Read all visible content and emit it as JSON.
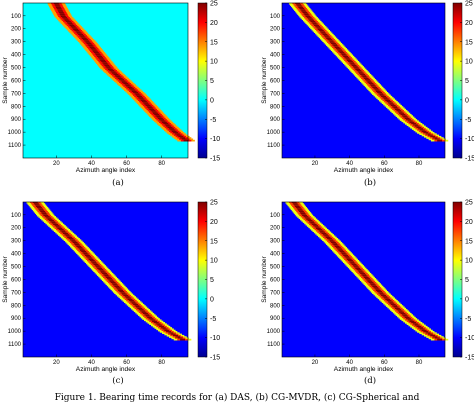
{
  "chart_data": [
    {
      "type": "heatmap",
      "panel_label": "(a)",
      "title": "",
      "xlabel": "Azimuth angle index",
      "ylabel": "Sample number",
      "xlim": [
        1,
        95
      ],
      "ylim": [
        1,
        1200
      ],
      "x_ticks": [
        20,
        40,
        60,
        80
      ],
      "y_ticks": [
        100,
        200,
        300,
        400,
        500,
        600,
        700,
        800,
        900,
        1000,
        1100
      ],
      "colorbar": {
        "range": [
          -15,
          25
        ],
        "ticks": [
          25,
          20,
          15,
          10,
          5,
          0,
          -5,
          -10,
          -15
        ]
      },
      "track": [
        [
          0,
          20
        ],
        [
          100,
          24
        ],
        [
          300,
          38
        ],
        [
          500,
          50
        ],
        [
          700,
          66
        ],
        [
          900,
          80
        ],
        [
          1000,
          88
        ],
        [
          1060,
          94
        ]
      ],
      "background_level": 0,
      "track_level": 25
    },
    {
      "type": "heatmap",
      "panel_label": "(b)",
      "title": "",
      "xlabel": "Azimuth angle index",
      "ylabel": "Sample number",
      "xlim": [
        1,
        95
      ],
      "ylim": [
        1,
        1200
      ],
      "x_ticks": [
        20,
        40,
        60,
        80
      ],
      "y_ticks": [
        100,
        200,
        300,
        400,
        500,
        600,
        700,
        800,
        900,
        1000,
        1100
      ],
      "colorbar": {
        "range": [
          -15,
          25
        ],
        "ticks": [
          25,
          20,
          15,
          10,
          5,
          0,
          -5,
          -10,
          -15
        ]
      },
      "track": [
        [
          0,
          10
        ],
        [
          100,
          16
        ],
        [
          300,
          30
        ],
        [
          500,
          44
        ],
        [
          700,
          58
        ],
        [
          900,
          74
        ],
        [
          1000,
          84
        ],
        [
          1060,
          92
        ]
      ],
      "background_level": -10,
      "track_level": 25
    },
    {
      "type": "heatmap",
      "panel_label": "(c)",
      "title": "",
      "xlabel": "Azimuth angle index",
      "ylabel": "Sample number",
      "xlim": [
        1,
        95
      ],
      "ylim": [
        1,
        1200
      ],
      "x_ticks": [
        20,
        40,
        60,
        80
      ],
      "y_ticks": [
        100,
        200,
        300,
        400,
        500,
        600,
        700,
        800,
        900,
        1000,
        1100
      ],
      "colorbar": {
        "range": [
          -15,
          25
        ],
        "ticks": [
          25,
          20,
          15,
          10,
          5,
          0,
          -5,
          -10,
          -15
        ]
      },
      "track": [
        [
          0,
          8
        ],
        [
          100,
          14
        ],
        [
          300,
          30
        ],
        [
          500,
          44
        ],
        [
          700,
          58
        ],
        [
          900,
          74
        ],
        [
          1000,
          84
        ],
        [
          1060,
          92
        ]
      ],
      "background_level": -10,
      "track_level": 25
    },
    {
      "type": "heatmap",
      "panel_label": "(d)",
      "title": "",
      "xlabel": "Azimuth angle index",
      "ylabel": "Sample number",
      "xlim": [
        1,
        95
      ],
      "ylim": [
        1,
        1200
      ],
      "x_ticks": [
        20,
        40,
        60,
        80
      ],
      "y_ticks": [
        100,
        200,
        300,
        400,
        500,
        600,
        700,
        800,
        900,
        1000,
        1100
      ],
      "colorbar": {
        "range": [
          -15,
          25
        ],
        "ticks": [
          25,
          20,
          15,
          10,
          5,
          0,
          -5,
          -10,
          -15
        ]
      },
      "track": [
        [
          0,
          8
        ],
        [
          100,
          14
        ],
        [
          300,
          30
        ],
        [
          500,
          44
        ],
        [
          700,
          58
        ],
        [
          900,
          74
        ],
        [
          1000,
          84
        ],
        [
          1060,
          92
        ]
      ],
      "background_level": -10,
      "track_level": 25
    }
  ],
  "caption": "Figure 1. Bearing time records for (a) DAS, (b) CG-MVDR, (c) CG-Spherical and"
}
